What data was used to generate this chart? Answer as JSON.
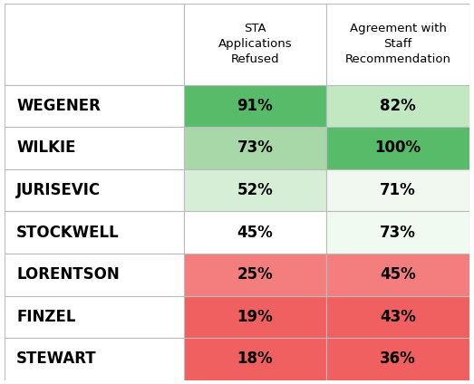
{
  "councillors": [
    "WEGENER",
    "WILKIE",
    "JURISEVIC",
    "STOCKWELL",
    "LORENTSON",
    "FINZEL",
    "STEWART"
  ],
  "sta_refused": [
    91,
    73,
    52,
    45,
    25,
    19,
    18
  ],
  "agreement": [
    82,
    100,
    71,
    73,
    45,
    43,
    36
  ],
  "col_headers": [
    "STA\nApplications\nRefused",
    "Agreement with\nStaff\nRecommendation"
  ],
  "bg_color": "#ffffff",
  "grid_color": "#bbbbbb",
  "text_color": "#000000",
  "font_size_header": 9.5,
  "font_size_cell": 12,
  "font_size_name": 12,
  "sta_colors": {
    "91": "#57BB6A",
    "73": "#A8D8A8",
    "52": "#D6EED6",
    "45": "#ffffff",
    "25": "#F47E7E",
    "19": "#F06060",
    "18": "#F06060"
  },
  "agr_colors": {
    "82": "#C2E8C2",
    "100": "#57BB6A",
    "71": "#f0f8f0",
    "73": "#f0faf0",
    "45": "#F47E7E",
    "43": "#F06060",
    "36": "#F06060"
  }
}
